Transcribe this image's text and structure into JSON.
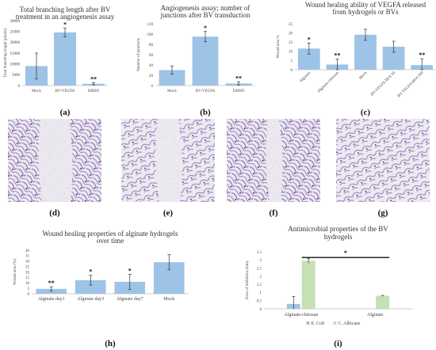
{
  "colors": {
    "bar_blue": "#9dc3e6",
    "bar_green": "#c5e0b4",
    "error": "#333333",
    "axis": "#bfbfbf",
    "stain": "#7b5ba8",
    "photo_bg": "#ece9ef"
  },
  "chart_data": [
    {
      "id": "a",
      "panel_label": "(a)",
      "type": "bar",
      "title": "Total branching length after BV treatment in an angiogenesis assay",
      "title_lines": [
        "Total branching length after BV",
        "treatment in an angiogenesis assay"
      ],
      "ylabel": "Total branching length (pixels)",
      "ylim": [
        0,
        30000
      ],
      "yticks": [
        "0",
        "5000",
        "10000",
        "15000",
        "20000",
        "25000",
        "30000"
      ],
      "categories": [
        "Mock",
        "BV-VEGFA",
        "DMSO"
      ],
      "values": [
        9000,
        24500,
        800
      ],
      "errors": [
        6000,
        2000,
        500
      ],
      "significance": [
        "",
        "*",
        "**"
      ]
    },
    {
      "id": "b",
      "panel_label": "(b)",
      "type": "bar",
      "title": "Angiogenesis assay; number of junctions after BV transduction",
      "title_lines": [
        "Angiogenesis assay; number of",
        "junctions after BV transduction"
      ],
      "ylabel": "Number of junctions",
      "ylim": [
        0,
        120
      ],
      "yticks": [
        "0",
        "20",
        "40",
        "60",
        "80",
        "100",
        "120"
      ],
      "categories": [
        "Mock",
        "BV-VEGFA",
        "DMSO"
      ],
      "values": [
        30,
        95,
        4
      ],
      "errors": [
        8,
        10,
        3
      ],
      "significance": [
        "",
        "*",
        "**"
      ]
    },
    {
      "id": "c",
      "panel_label": "(c)",
      "type": "bar",
      "title": "Wound healing ability of VEGFA released from hydrogels or BVs",
      "title_lines": [
        "Wound healing ability of VEGFA released",
        "from hydrogels or BVs"
      ],
      "ylabel": "Wound area %",
      "ylim": [
        0,
        25
      ],
      "yticks": [
        "0",
        "5",
        "10",
        "15",
        "20",
        "25"
      ],
      "categories": [
        "Alginate",
        "Alginate-chitosan",
        "Mock",
        "BV-VEGFA MOI 50",
        "BV-VEGFA MOI 100"
      ],
      "values": [
        11.5,
        2.8,
        19,
        12.5,
        2.5
      ],
      "errors": [
        3,
        3,
        3,
        3,
        3.5
      ],
      "significance": [
        "*",
        "**",
        "",
        "",
        "**"
      ]
    },
    {
      "id": "h",
      "panel_label": "(h)",
      "type": "bar",
      "title": "Wound healing properties of alginate hydrogels over time",
      "title_lines": [
        "Wound healing properties of alginate hydrogels",
        "over time"
      ],
      "ylabel": "Wound area (%)",
      "ylim": [
        0,
        40
      ],
      "yticks": [
        "0",
        "5",
        "10",
        "15",
        "20",
        "25",
        "30",
        "35",
        "40"
      ],
      "categories": [
        "Alginate day1",
        "Alginate day3",
        "Alginate day7",
        "Mock"
      ],
      "values": [
        4.5,
        12.5,
        11,
        29
      ],
      "errors": [
        2,
        4.5,
        7,
        7
      ],
      "significance": [
        "**",
        "*",
        "*",
        ""
      ]
    },
    {
      "id": "i",
      "panel_label": "(i)",
      "type": "bar",
      "title": "Antimicrobial properties of the BV hydrogels",
      "title_lines": [
        "Antimicrobial properties of the BV",
        "hydrogels"
      ],
      "ylabel": "Zone of inhibition (mm)",
      "ylim": [
        0,
        3.5
      ],
      "yticks": [
        "0",
        "0.5",
        "1",
        "1.5",
        "2",
        "2.5",
        "3",
        "3.5"
      ],
      "categories": [
        "Alginate-chitosan",
        "Alginate"
      ],
      "series": [
        {
          "name": "E. Coli",
          "values": [
            0.3,
            0.0
          ],
          "errors": [
            0.45,
            0.0
          ]
        },
        {
          "name": "C. Albicans",
          "values": [
            2.95,
            0.8
          ],
          "errors": [
            0.15,
            0.02
          ]
        }
      ],
      "significance_bracket": "*"
    }
  ],
  "micrographs": [
    {
      "panel_label": "(d)",
      "gap": "wide"
    },
    {
      "panel_label": "(e)",
      "gap": "medium"
    },
    {
      "panel_label": "(f)",
      "gap": "narrow"
    },
    {
      "panel_label": "(g)",
      "gap": "none"
    }
  ]
}
